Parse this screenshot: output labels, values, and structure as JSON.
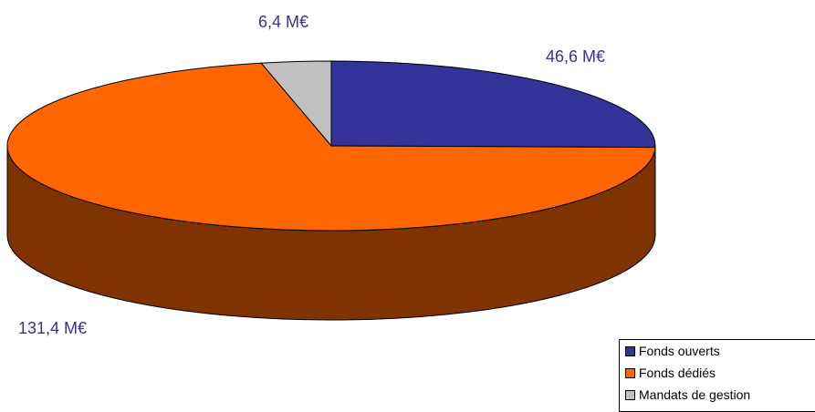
{
  "chart_data": {
    "type": "pie",
    "title": "",
    "slices": [
      {
        "name": "Fonds ouverts",
        "value": 46.6,
        "label": "46,6 M€",
        "color": "#333399"
      },
      {
        "name": "Fonds dédiés",
        "value": 131.4,
        "label": "131,4 M€",
        "color": "#FF6600"
      },
      {
        "name": "Mandats de gestion",
        "value": 6.4,
        "label": "6,4 M€",
        "color": "#C0C0C0"
      }
    ],
    "side_colors": {
      "Fonds dédiés": "#7F3300"
    },
    "legend_position": "bottom-right",
    "three_d": true
  }
}
